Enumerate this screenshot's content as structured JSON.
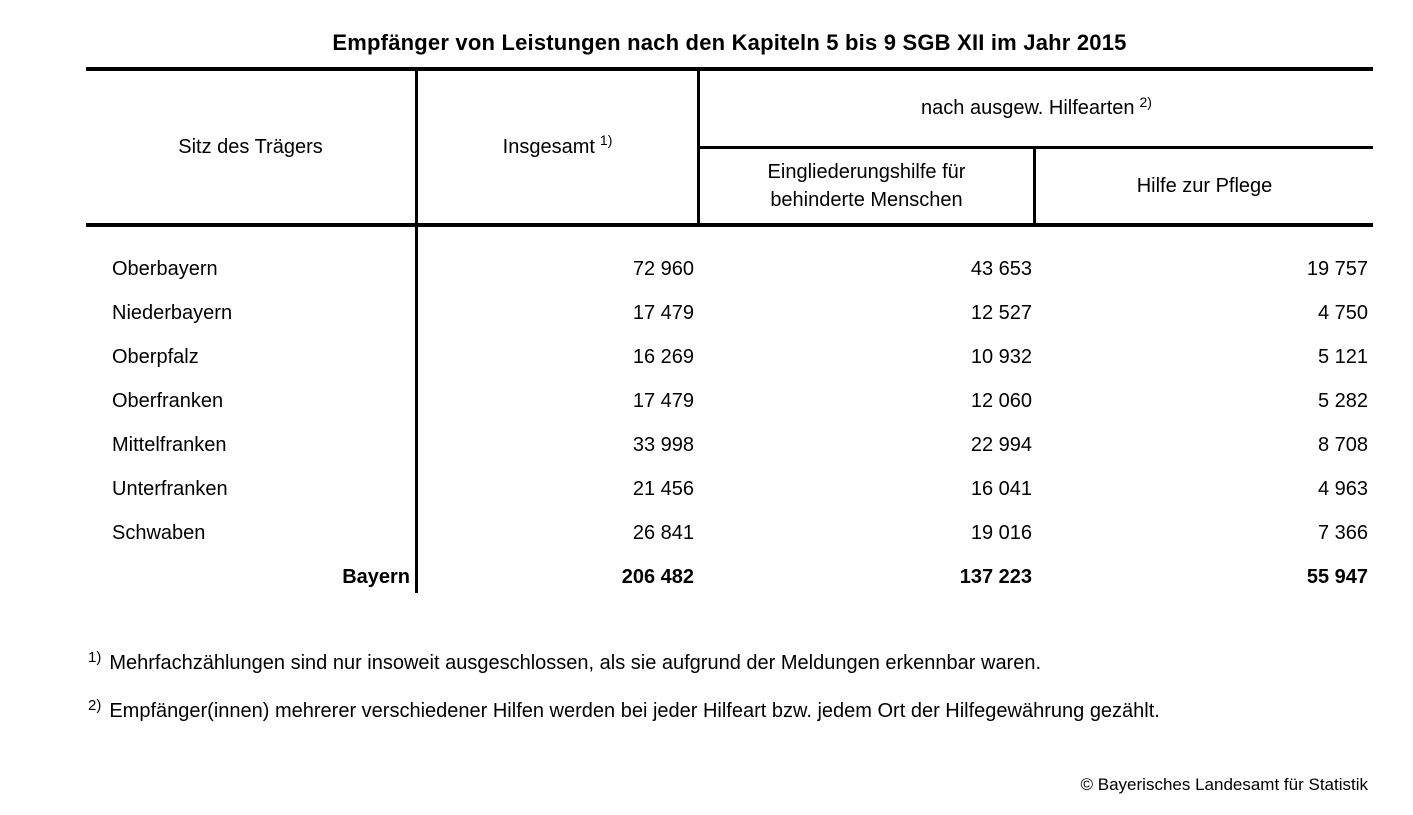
{
  "title": "Empfänger von Leistungen nach den Kapiteln 5 bis 9 SGB XII im Jahr 2015",
  "table": {
    "col_sitz": "Sitz des Trägers",
    "col_insgesamt": "Insgesamt",
    "col_insgesamt_note": "1)",
    "group_label": "nach ausgew. Hilfearten",
    "group_note": "2)",
    "col_eingliederung_line1": "Eingliederungshilfe für",
    "col_eingliederung_line2": "behinderte Menschen",
    "col_pflege": "Hilfe zur Pflege",
    "rows": [
      {
        "name": "Oberbayern",
        "insgesamt": "72 960",
        "eingliederungshilfe": "43 653",
        "hilfe_zur_pflege": "19 757"
      },
      {
        "name": "Niederbayern",
        "insgesamt": "17 479",
        "eingliederungshilfe": "12 527",
        "hilfe_zur_pflege": "4 750"
      },
      {
        "name": "Oberpfalz",
        "insgesamt": "16 269",
        "eingliederungshilfe": "10 932",
        "hilfe_zur_pflege": "5 121"
      },
      {
        "name": "Oberfranken",
        "insgesamt": "17 479",
        "eingliederungshilfe": "12 060",
        "hilfe_zur_pflege": "5 282"
      },
      {
        "name": "Mittelfranken",
        "insgesamt": "33 998",
        "eingliederungshilfe": "22 994",
        "hilfe_zur_pflege": "8 708"
      },
      {
        "name": "Unterfranken",
        "insgesamt": "21 456",
        "eingliederungshilfe": "16 041",
        "hilfe_zur_pflege": "4 963"
      },
      {
        "name": "Schwaben",
        "insgesamt": "26 841",
        "eingliederungshilfe": "19 016",
        "hilfe_zur_pflege": "7 366"
      }
    ],
    "total_row": {
      "name": "Bayern",
      "insgesamt": "206 482",
      "eingliederungshilfe": "137 223",
      "hilfe_zur_pflege": "55 947"
    }
  },
  "footnotes": [
    {
      "marker": "1)",
      "text": "Mehrfachzählungen sind nur insoweit ausgeschlossen, als sie aufgrund der Meldungen erkennbar waren."
    },
    {
      "marker": "2)",
      "text": "Empfänger(innen) mehrerer verschiedener Hilfen werden bei jeder Hilfeart bzw. jedem Ort der Hilfegewährung gezählt."
    }
  ],
  "copyright": "© Bayerisches Landesamt für Statistik"
}
